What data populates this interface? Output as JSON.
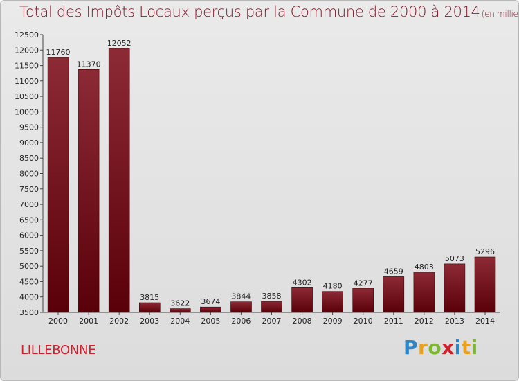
{
  "title": "Total des Impôts Locaux perçus par la Commune de 2000 à 2014",
  "title_unit": "(en milliers d'€)",
  "commune": "LILLEBONNE",
  "logo": {
    "letters": [
      "P",
      "r",
      "o",
      "x",
      "i",
      "t",
      "i"
    ],
    "colors": [
      "#2e86c9",
      "#e8a020",
      "#7db830",
      "#d0202d",
      "#2e86c9",
      "#e8a020",
      "#7db830"
    ]
  },
  "chart_data": {
    "type": "bar",
    "title": "Total des Impôts Locaux perçus par la Commune de 2000 à 2014",
    "categories": [
      "2000",
      "2001",
      "2002",
      "2003",
      "2004",
      "2005",
      "2006",
      "2007",
      "2008",
      "2009",
      "2010",
      "2011",
      "2012",
      "2013",
      "2014"
    ],
    "values": [
      11760,
      11370,
      12052,
      3815,
      3622,
      3674,
      3844,
      3858,
      4302,
      4180,
      4277,
      4659,
      4803,
      5073,
      5296
    ],
    "value_labels": [
      "11760",
      "11370",
      "12052",
      "3815",
      "3622",
      "3674",
      "3844",
      "3858",
      "4302",
      "4180",
      "4277",
      "4659",
      "4803",
      "5073",
      "5296"
    ],
    "ylim": [
      3500,
      12500
    ],
    "yticks": [
      3500,
      4000,
      4500,
      5000,
      5500,
      6000,
      6500,
      7000,
      7500,
      8000,
      8500,
      9000,
      9500,
      10000,
      10500,
      11000,
      11500,
      12000,
      12500
    ],
    "ytick_labels": [
      "3500",
      "4000",
      "4500",
      "5000",
      "5500",
      "6000",
      "6500",
      "7000",
      "7500",
      "8000",
      "8500",
      "9000",
      "9500",
      "10000",
      "10500",
      "11000",
      "11500",
      "12000",
      "12500"
    ],
    "xlabel": "",
    "ylabel": "",
    "grid": false,
    "bar_color": "#7a1020"
  }
}
